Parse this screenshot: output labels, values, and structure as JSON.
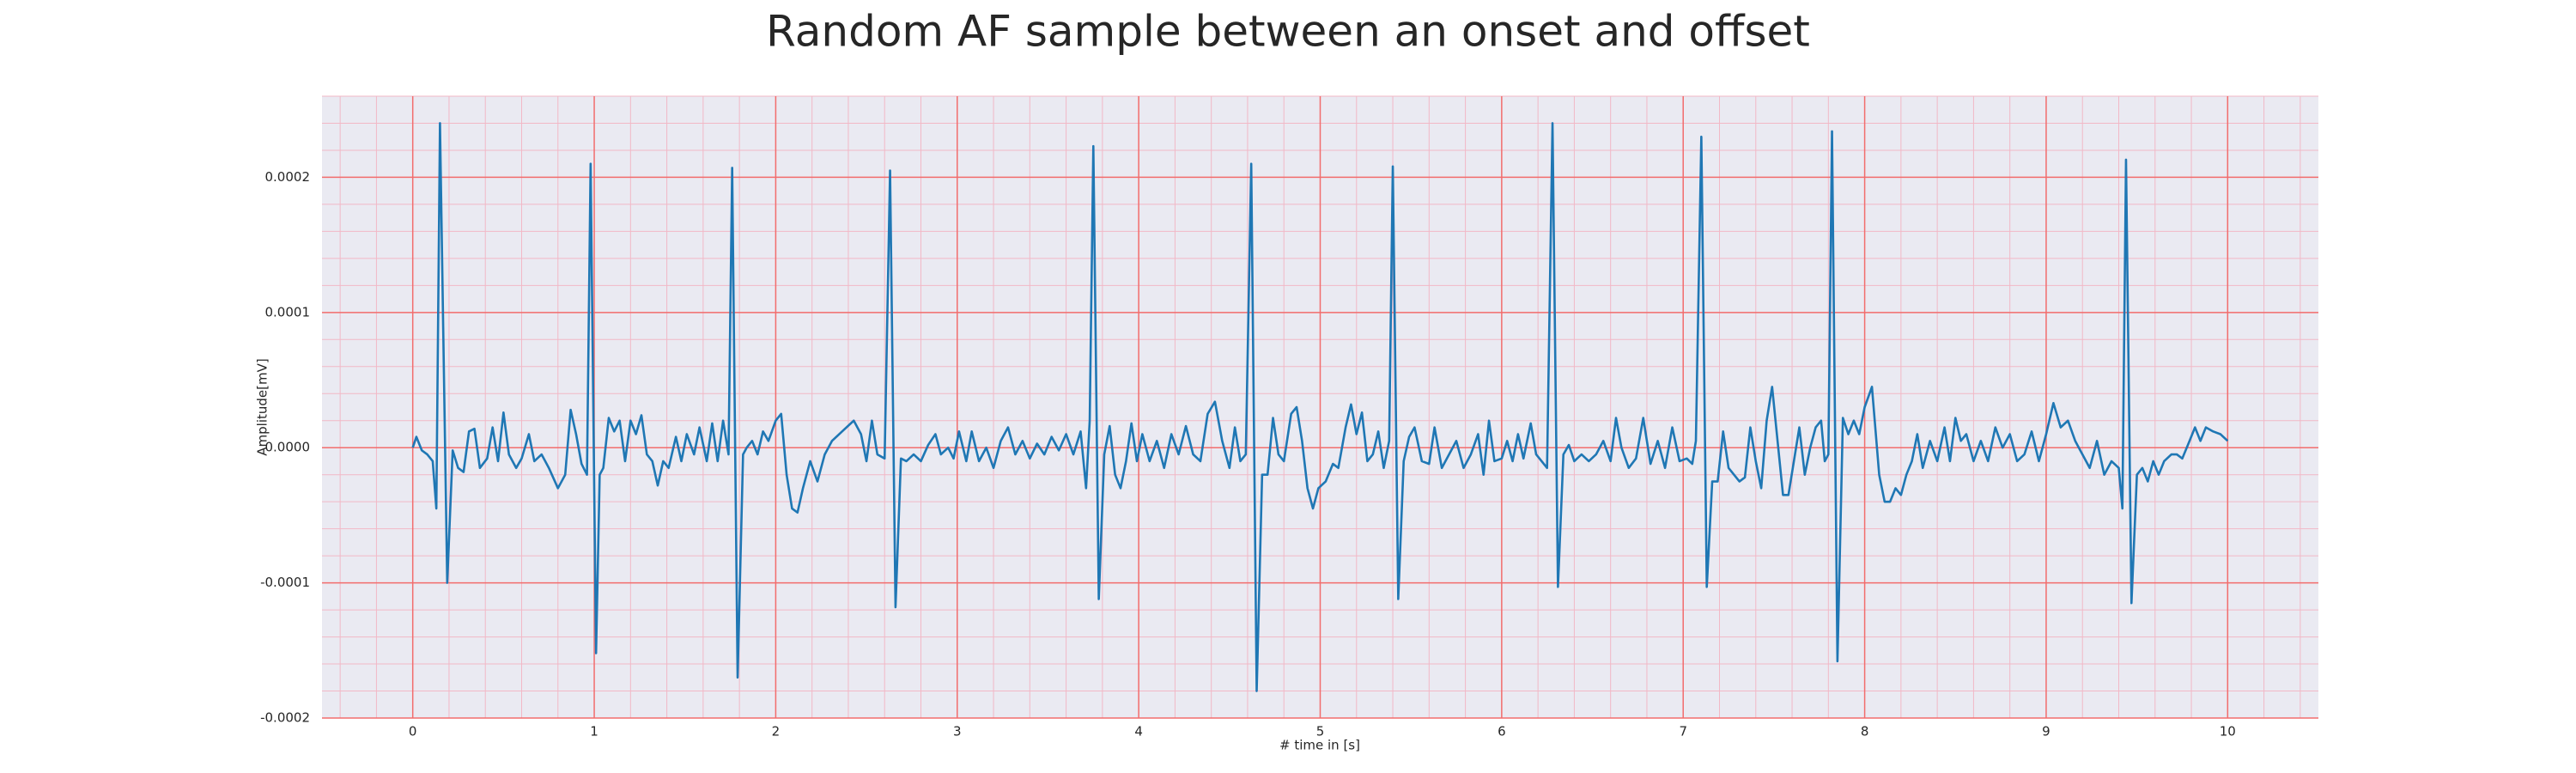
{
  "chart_data": {
    "type": "line",
    "title": "Random AF sample between an onset and offset",
    "xlabel": "# time in [s]",
    "ylabel": "Amplitude[mV]",
    "color": "#1f77b4",
    "grid": true,
    "minor_grid": true,
    "xlim": [
      -0.5,
      10.5
    ],
    "ylim": [
      -0.0002,
      0.00026
    ],
    "xticks": [
      0,
      1,
      2,
      3,
      4,
      5,
      6,
      7,
      8,
      9,
      10
    ],
    "yticks": [
      {
        "value": -0.0002,
        "label": "-0.0002"
      },
      {
        "value": -0.0001,
        "label": "-0.0001"
      },
      {
        "value": 0,
        "label": "0.0000"
      },
      {
        "value": 0.0001,
        "label": "0.0001"
      },
      {
        "value": 0.0002,
        "label": "0.0002"
      }
    ],
    "x": [
      0.0,
      0.02,
      0.05,
      0.08,
      0.11,
      0.13,
      0.15,
      0.19,
      0.22,
      0.25,
      0.28,
      0.31,
      0.34,
      0.37,
      0.41,
      0.44,
      0.47,
      0.5,
      0.53,
      0.57,
      0.6,
      0.64,
      0.67,
      0.71,
      0.75,
      0.8,
      0.84,
      0.87,
      0.9,
      0.93,
      0.96,
      0.98,
      1.01,
      1.03,
      1.05,
      1.08,
      1.11,
      1.14,
      1.17,
      1.2,
      1.23,
      1.26,
      1.29,
      1.32,
      1.35,
      1.38,
      1.41,
      1.45,
      1.48,
      1.51,
      1.55,
      1.58,
      1.62,
      1.65,
      1.68,
      1.71,
      1.74,
      1.76,
      1.79,
      1.82,
      1.84,
      1.87,
      1.9,
      1.93,
      1.96,
      2.0,
      2.03,
      2.06,
      2.09,
      2.12,
      2.15,
      2.19,
      2.23,
      2.27,
      2.31,
      2.35,
      2.39,
      2.43,
      2.47,
      2.5,
      2.53,
      2.56,
      2.6,
      2.63,
      2.66,
      2.69,
      2.72,
      2.76,
      2.8,
      2.84,
      2.88,
      2.91,
      2.95,
      2.98,
      3.01,
      3.05,
      3.08,
      3.12,
      3.16,
      3.2,
      3.24,
      3.28,
      3.32,
      3.36,
      3.4,
      3.44,
      3.48,
      3.52,
      3.56,
      3.6,
      3.64,
      3.68,
      3.71,
      3.73,
      3.75,
      3.78,
      3.81,
      3.84,
      3.87,
      3.9,
      3.93,
      3.96,
      3.99,
      4.02,
      4.06,
      4.1,
      4.14,
      4.18,
      4.22,
      4.26,
      4.3,
      4.34,
      4.38,
      4.42,
      4.46,
      4.5,
      4.53,
      4.56,
      4.59,
      4.62,
      4.65,
      4.68,
      4.71,
      4.74,
      4.77,
      4.8,
      4.84,
      4.87,
      4.9,
      4.93,
      4.96,
      4.99,
      5.03,
      5.07,
      5.1,
      5.14,
      5.17,
      5.2,
      5.23,
      5.26,
      5.29,
      5.32,
      5.35,
      5.38,
      5.4,
      5.43,
      5.46,
      5.49,
      5.52,
      5.56,
      5.6,
      5.63,
      5.67,
      5.71,
      5.75,
      5.79,
      5.83,
      5.87,
      5.9,
      5.93,
      5.96,
      6.0,
      6.03,
      6.06,
      6.09,
      6.12,
      6.16,
      6.19,
      6.22,
      6.25,
      6.28,
      6.31,
      6.34,
      6.37,
      6.4,
      6.44,
      6.48,
      6.52,
      6.56,
      6.6,
      6.63,
      6.66,
      6.7,
      6.74,
      6.78,
      6.82,
      6.86,
      6.9,
      6.94,
      6.98,
      7.02,
      7.05,
      7.07,
      7.1,
      7.13,
      7.16,
      7.19,
      7.22,
      7.25,
      7.28,
      7.31,
      7.34,
      7.37,
      7.4,
      7.43,
      7.46,
      7.49,
      7.52,
      7.55,
      7.58,
      7.61,
      7.64,
      7.67,
      7.7,
      7.73,
      7.76,
      7.78,
      7.8,
      7.82,
      7.85,
      7.88,
      7.91,
      7.94,
      7.97,
      8.0,
      8.04,
      8.08,
      8.11,
      8.14,
      8.17,
      8.2,
      8.23,
      8.26,
      8.29,
      8.32,
      8.36,
      8.4,
      8.44,
      8.47,
      8.5,
      8.53,
      8.56,
      8.6,
      8.64,
      8.68,
      8.72,
      8.76,
      8.8,
      8.84,
      8.88,
      8.92,
      8.96,
      9.0,
      9.04,
      9.08,
      9.12,
      9.16,
      9.2,
      9.24,
      9.28,
      9.32,
      9.36,
      9.4,
      9.42,
      9.44,
      9.47,
      9.5,
      9.53,
      9.56,
      9.59,
      9.62,
      9.65,
      9.69,
      9.72,
      9.75,
      9.79,
      9.82,
      9.85,
      9.88,
      9.92,
      9.96,
      10.0
    ],
    "values": [
      0,
      8e-06,
      -2e-06,
      -5e-06,
      -1e-05,
      -4.5e-05,
      0.00024,
      -0.0001,
      -2e-06,
      -1.5e-05,
      -1.8e-05,
      1.2e-05,
      1.4e-05,
      -1.5e-05,
      -8e-06,
      1.5e-05,
      -1e-05,
      2.6e-05,
      -5e-06,
      -1.5e-05,
      -8e-06,
      1e-05,
      -1e-05,
      -5e-06,
      -1.5e-05,
      -3e-05,
      -2e-05,
      2.8e-05,
      1e-05,
      -1.2e-05,
      -2e-05,
      0.00021,
      -0.000152,
      -2e-05,
      -1.5e-05,
      2.2e-05,
      1.2e-05,
      2e-05,
      -1e-05,
      2e-05,
      1e-05,
      2.4e-05,
      -5e-06,
      -1e-05,
      -2.8e-05,
      -1e-05,
      -1.5e-05,
      8e-06,
      -1e-05,
      1e-05,
      -5e-06,
      1.5e-05,
      -1e-05,
      1.8e-05,
      -1e-05,
      2e-05,
      -5e-06,
      0.000207,
      -0.00017,
      -5e-06,
      0,
      5e-06,
      -5e-06,
      1.2e-05,
      5e-06,
      2e-05,
      2.5e-05,
      -2e-05,
      -4.5e-05,
      -4.8e-05,
      -3e-05,
      -1e-05,
      -2.5e-05,
      -5e-06,
      5e-06,
      1e-05,
      1.5e-05,
      2e-05,
      1e-05,
      -1e-05,
      2e-05,
      -5e-06,
      -8e-06,
      0.000205,
      -0.000118,
      -8e-06,
      -1e-05,
      -5e-06,
      -1e-05,
      2e-06,
      1e-05,
      -5e-06,
      0,
      -8e-06,
      1.2e-05,
      -1e-05,
      1.2e-05,
      -1e-05,
      0,
      -1.5e-05,
      5e-06,
      1.5e-05,
      -5e-06,
      5e-06,
      -8e-06,
      3e-06,
      -5e-06,
      8e-06,
      -2e-06,
      1e-05,
      -5e-06,
      1.2e-05,
      -3e-05,
      2e-05,
      0.000223,
      -0.000112,
      -5e-06,
      1.6e-05,
      -2e-05,
      -3e-05,
      -1e-05,
      1.8e-05,
      -1e-05,
      1e-05,
      -1e-05,
      5e-06,
      -1.5e-05,
      1e-05,
      -5e-06,
      1.6e-05,
      -5e-06,
      -1e-05,
      2.5e-05,
      3.4e-05,
      5e-06,
      -1.5e-05,
      1.5e-05,
      -1e-05,
      -5e-06,
      0.00021,
      -0.00018,
      -2e-05,
      -2e-05,
      2.2e-05,
      -5e-06,
      -1e-05,
      2.5e-05,
      3e-05,
      5e-06,
      -3e-05,
      -4.5e-05,
      -3e-05,
      -2.5e-05,
      -1.2e-05,
      -1.5e-05,
      1.5e-05,
      3.2e-05,
      1e-05,
      2.6e-05,
      -1e-05,
      -5e-06,
      1.2e-05,
      -1.5e-05,
      5e-06,
      0.000208,
      -0.000112,
      -1e-05,
      8e-06,
      1.5e-05,
      -1e-05,
      -1.2e-05,
      1.5e-05,
      -1.5e-05,
      -5e-06,
      5e-06,
      -1.5e-05,
      -5e-06,
      1e-05,
      -2e-05,
      2e-05,
      -1e-05,
      -8e-06,
      5e-06,
      -1e-05,
      1e-05,
      -8e-06,
      1.8e-05,
      -5e-06,
      -1e-05,
      -1.5e-05,
      0.00024,
      -0.000103,
      -5e-06,
      2e-06,
      -1e-05,
      -5e-06,
      -1e-05,
      -5e-06,
      5e-06,
      -1e-05,
      2.2e-05,
      0,
      -1.5e-05,
      -8e-06,
      2.2e-05,
      -1.2e-05,
      5e-06,
      -1.5e-05,
      1.5e-05,
      -1e-05,
      -8e-06,
      -1.2e-05,
      5e-06,
      0.00023,
      -0.000103,
      -2.5e-05,
      -2.5e-05,
      1.2e-05,
      -1.5e-05,
      -2e-05,
      -2.5e-05,
      -2.2e-05,
      1.5e-05,
      -1e-05,
      -3e-05,
      2e-05,
      4.5e-05,
      5e-06,
      -3.5e-05,
      -3.5e-05,
      -1e-05,
      1.5e-05,
      -2e-05,
      0,
      1.5e-05,
      2e-05,
      -1e-05,
      -5e-06,
      0.000234,
      -0.000158,
      2.2e-05,
      1e-05,
      2e-05,
      1e-05,
      3e-05,
      4.5e-05,
      -2e-05,
      -4e-05,
      -4e-05,
      -3e-05,
      -3.5e-05,
      -2e-05,
      -1e-05,
      1e-05,
      -1.5e-05,
      5e-06,
      -1e-05,
      1.5e-05,
      -1e-05,
      2.2e-05,
      5e-06,
      1e-05,
      -1e-05,
      5e-06,
      -1e-05,
      1.5e-05,
      0,
      1e-05,
      -1e-05,
      -5e-06,
      1.2e-05,
      -1e-05,
      1e-05,
      3.3e-05,
      1.5e-05,
      2e-05,
      5e-06,
      -5e-06,
      -1.5e-05,
      5e-06,
      -2e-05,
      -1e-05,
      -1.5e-05,
      -4.5e-05,
      0.000213,
      -0.000115,
      -2e-05,
      -1.5e-05,
      -2.5e-05,
      -1e-05,
      -2e-05,
      -1e-05,
      -5e-06,
      -5e-06,
      -8e-06,
      5e-06,
      1.5e-05,
      5e-06,
      1.5e-05,
      1.2e-05,
      1e-05,
      5e-06
    ]
  }
}
